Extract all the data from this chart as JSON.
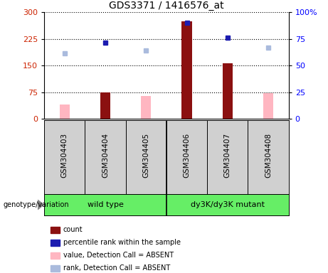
{
  "title": "GDS3371 / 1416576_at",
  "samples": [
    "GSM304403",
    "GSM304404",
    "GSM304405",
    "GSM304406",
    "GSM304407",
    "GSM304408"
  ],
  "count_values": [
    null,
    75,
    null,
    275,
    157,
    null
  ],
  "count_absent_values": [
    40,
    null,
    65,
    null,
    null,
    72
  ],
  "rank_present_values": [
    null,
    215,
    null,
    270,
    228,
    null
  ],
  "rank_absent_values": [
    185,
    null,
    193,
    null,
    null,
    200
  ],
  "left_ylim": [
    0,
    300
  ],
  "right_ylim": [
    0,
    100
  ],
  "left_yticks": [
    0,
    75,
    150,
    225,
    300
  ],
  "right_yticks": [
    0,
    25,
    50,
    75,
    100
  ],
  "right_yticklabels": [
    "0",
    "25",
    "50",
    "75",
    "100%"
  ],
  "bar_color_present": "#8B1010",
  "bar_color_absent": "#FFB6C1",
  "dot_color_present": "#1C1CB0",
  "dot_color_absent": "#AABBDD",
  "sample_box_color": "#d0d0d0",
  "group_box_color": "#66EE66",
  "genotype_label": "genotype/variation",
  "legend_items": [
    {
      "label": "count",
      "color": "#8B1010"
    },
    {
      "label": "percentile rank within the sample",
      "color": "#1C1CB0"
    },
    {
      "label": "value, Detection Call = ABSENT",
      "color": "#FFB6C1"
    },
    {
      "label": "rank, Detection Call = ABSENT",
      "color": "#AABBDD"
    }
  ]
}
